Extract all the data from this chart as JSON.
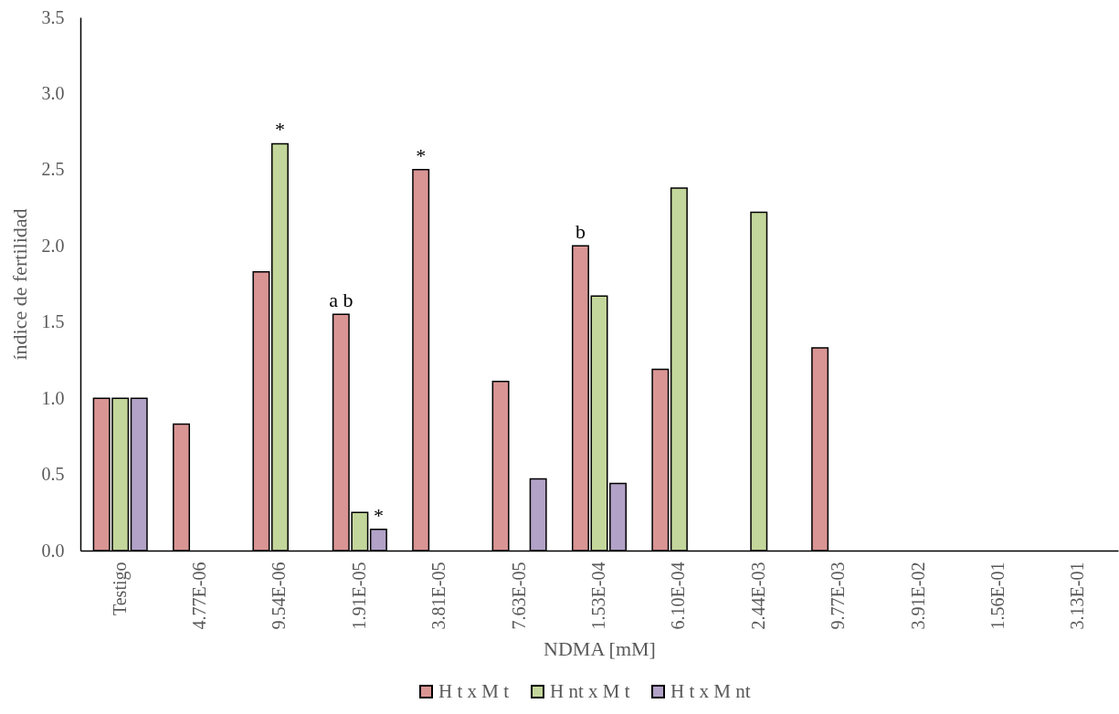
{
  "chart_data": {
    "type": "bar",
    "xlabel": "NDMA [mM]",
    "ylabel": "índice de fertilidad",
    "legend": "bottom",
    "categories": [
      "Testigo",
      "4.77E-06",
      "9.54E-06",
      "1.91E-05",
      "3.81E-05",
      "7.63E-05",
      "1.53E-04",
      "6.10E-04",
      "2.44E-03",
      "9.77E-03",
      "3.91E-02",
      "1.56E-01",
      "3.13E-01"
    ],
    "series": [
      {
        "name": "H t x M t",
        "color": "#d99594",
        "values": [
          1.0,
          0.83,
          1.83,
          1.55,
          2.5,
          1.11,
          2.0,
          1.19,
          null,
          1.33,
          null,
          null,
          null
        ],
        "value_labels": [
          null,
          null,
          null,
          "a b",
          "*",
          null,
          "b",
          null,
          null,
          null,
          null,
          null,
          null
        ]
      },
      {
        "name": "H nt x M t",
        "color": "#c3d69b",
        "values": [
          1.0,
          null,
          2.67,
          0.25,
          null,
          null,
          1.67,
          2.38,
          2.22,
          null,
          null,
          null,
          null
        ],
        "value_labels": [
          null,
          null,
          "*",
          null,
          null,
          null,
          null,
          null,
          null,
          null,
          null,
          null,
          null
        ]
      },
      {
        "name": "H t x M nt",
        "color": "#b2a2c7",
        "values": [
          1.0,
          null,
          null,
          0.14,
          null,
          0.47,
          0.44,
          null,
          null,
          null,
          null,
          null,
          null
        ],
        "value_labels": [
          null,
          null,
          null,
          "*",
          null,
          null,
          null,
          null,
          null,
          null,
          null,
          null,
          null
        ]
      }
    ],
    "ylim": [
      0,
      3.5
    ],
    "yticks": [
      {
        "value": 0,
        "label": "0.0"
      },
      0.5,
      {
        "value": 1,
        "label": "1.0"
      },
      1.5,
      {
        "value": 2,
        "label": "2.0"
      },
      2.5,
      {
        "value": 3,
        "label": "3.0"
      },
      3.5
    ]
  }
}
